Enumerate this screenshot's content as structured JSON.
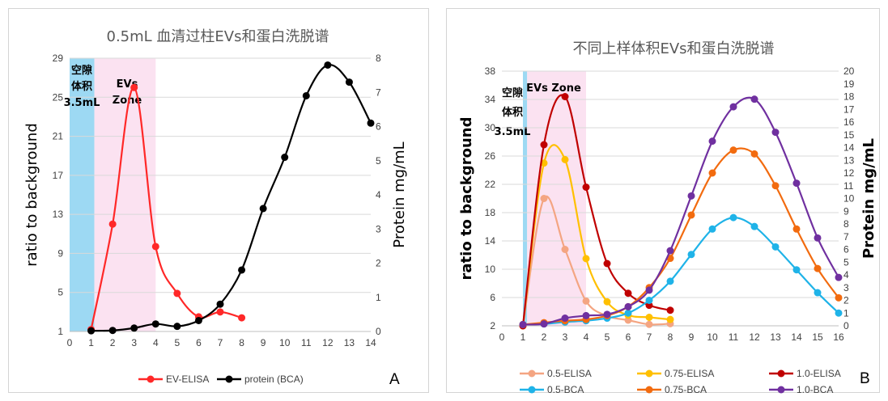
{
  "chart_data": [
    {
      "panel_label": "A",
      "type": "line",
      "title": "0.5mL 血清过柱EVs和蛋白洗脱谱",
      "ylabel": "ratio to background",
      "y2label": "Protein mg/mL",
      "xlim": [
        0,
        14
      ],
      "x_ticks": [
        0,
        1,
        2,
        3,
        4,
        5,
        6,
        7,
        8,
        9,
        10,
        11,
        12,
        13,
        14
      ],
      "ylim": [
        1,
        29
      ],
      "y_ticks": [
        1,
        5,
        9,
        13,
        17,
        21,
        25,
        29
      ],
      "y2lim": [
        0,
        8
      ],
      "y2_ticks": [
        0,
        1,
        2,
        3,
        4,
        5,
        6,
        7,
        8
      ],
      "zones": [
        {
          "name": "void",
          "from": 0,
          "to": 1.15,
          "color": "#9dd9f3",
          "lines": [
            "空隙",
            "体积",
            "3.5mL"
          ]
        },
        {
          "name": "evs",
          "from": 1.15,
          "to": 4,
          "color": "#fbe2f1",
          "lines": [
            "EVs",
            "Zone"
          ]
        }
      ],
      "series": [
        {
          "name": "EV-ELISA",
          "axis": "left",
          "color": "#ff2828",
          "x": [
            1,
            2,
            3,
            4,
            5,
            6,
            7,
            8
          ],
          "values": [
            1.2,
            12,
            26,
            9.7,
            4.9,
            2.5,
            3,
            2.4
          ]
        },
        {
          "name": "protein (BCA)",
          "axis": "right",
          "color": "#000000",
          "x": [
            1,
            2,
            3,
            4,
            5,
            6,
            7,
            8,
            9,
            10,
            11,
            12,
            13,
            14
          ],
          "values": [
            0.02,
            0.03,
            0.1,
            0.22,
            0.15,
            0.32,
            0.8,
            1.8,
            3.6,
            5.1,
            6.9,
            7.8,
            7.3,
            6.1
          ]
        }
      ],
      "legend": "bottom"
    },
    {
      "panel_label": "B",
      "type": "line",
      "title": "不同上样体积EVs和蛋白洗脱谱",
      "ylabel": "ratio to background",
      "y2label": "Protein mg/mL",
      "xlim": [
        0,
        16
      ],
      "x_ticks": [
        0,
        1,
        2,
        3,
        4,
        5,
        6,
        7,
        8,
        9,
        10,
        11,
        12,
        13,
        14,
        15,
        16
      ],
      "ylim": [
        2,
        38
      ],
      "y_ticks": [
        2,
        6,
        10,
        14,
        18,
        22,
        26,
        30,
        34,
        38
      ],
      "y2lim": [
        0,
        20
      ],
      "y2_ticks": [
        0,
        1,
        2,
        3,
        4,
        5,
        6,
        7,
        8,
        9,
        10,
        11,
        12,
        13,
        14,
        15,
        16,
        17,
        18,
        19,
        20
      ],
      "zones": [
        {
          "name": "void",
          "from": 1,
          "to": 1.2,
          "color": "#9dd9f3",
          "lines": [
            "空隙",
            "体积",
            "3.5mL"
          ]
        },
        {
          "name": "evs",
          "from": 1.2,
          "to": 4,
          "color": "#fbe2f1",
          "lines": [
            "EVs Zone"
          ]
        }
      ],
      "series": [
        {
          "name": "0.5-ELISA",
          "axis": "left",
          "color": "#f4a582",
          "x": [
            1,
            2,
            3,
            4,
            5,
            6,
            7,
            8
          ],
          "values": [
            2,
            20,
            12.8,
            5.5,
            3.4,
            2.8,
            2.2,
            2.3
          ]
        },
        {
          "name": "0.75-ELISA",
          "axis": "left",
          "color": "#ffc000",
          "x": [
            1,
            2,
            3,
            4,
            5,
            6,
            7,
            8
          ],
          "values": [
            2,
            25,
            25.5,
            11.5,
            5.4,
            3.5,
            3.2,
            2.9
          ]
        },
        {
          "name": "1.0-ELISA",
          "axis": "left",
          "color": "#c00000",
          "x": [
            1,
            2,
            3,
            4,
            5,
            6,
            7,
            8
          ],
          "values": [
            2,
            27.6,
            34.4,
            21.6,
            10.8,
            6.6,
            4.9,
            4.2
          ]
        },
        {
          "name": "0.5-BCA",
          "axis": "right",
          "color": "#1fb3e8",
          "x": [
            1,
            2,
            3,
            4,
            5,
            6,
            7,
            8,
            9,
            10,
            11,
            12,
            13,
            14,
            15,
            16
          ],
          "values": [
            0.1,
            0.15,
            0.3,
            0.4,
            0.6,
            1.0,
            2.0,
            3.5,
            5.6,
            7.6,
            8.5,
            7.8,
            6.2,
            4.4,
            2.6,
            1.0
          ]
        },
        {
          "name": "0.75-BCA",
          "axis": "right",
          "color": "#f26b0f",
          "x": [
            1,
            2,
            3,
            4,
            5,
            6,
            7,
            8,
            9,
            10,
            11,
            12,
            13,
            14,
            15,
            16
          ],
          "values": [
            0.1,
            0.25,
            0.4,
            0.5,
            0.8,
            1.5,
            3.0,
            5.3,
            8.7,
            12.0,
            13.8,
            13.5,
            11.0,
            7.6,
            4.5,
            2.2
          ]
        },
        {
          "name": "1.0-BCA",
          "axis": "right",
          "color": "#7030a0",
          "x": [
            1,
            2,
            3,
            4,
            5,
            6,
            7,
            8,
            9,
            10,
            11,
            12,
            13,
            14,
            15,
            16
          ],
          "values": [
            0.1,
            0.15,
            0.6,
            0.8,
            0.9,
            1.5,
            2.8,
            5.9,
            10.2,
            14.5,
            17.2,
            17.8,
            15.2,
            11.2,
            6.9,
            3.8
          ]
        }
      ],
      "legend": "bottom"
    }
  ]
}
